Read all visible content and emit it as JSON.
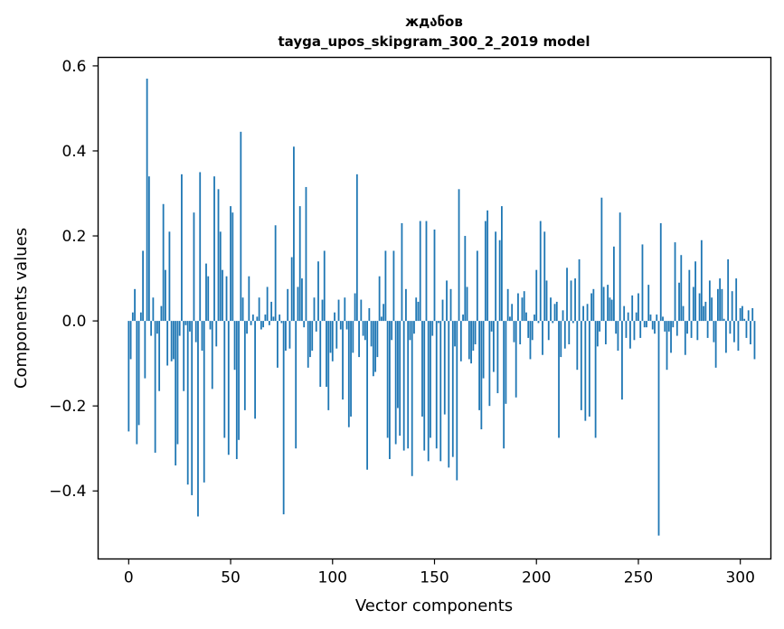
{
  "chart_data": {
    "type": "bar",
    "title": "ждანов",
    "subtitle": "tayga_upos_skipgram_300_2_2019 model",
    "xlabel": "Vector components",
    "ylabel": "Components values",
    "xlim": [
      -15,
      315
    ],
    "ylim": [
      -0.56,
      0.62
    ],
    "x_ticks": [
      0,
      50,
      100,
      150,
      200,
      250,
      300
    ],
    "x_tick_labels": [
      "0",
      "50",
      "100",
      "150",
      "200",
      "250",
      "300"
    ],
    "y_ticks": [
      -0.4,
      -0.2,
      0.0,
      0.2,
      0.4,
      0.6
    ],
    "y_tick_labels": [
      "−0.4",
      "−0.2",
      "0.0",
      "0.2",
      "0.4",
      "0.6"
    ],
    "grid": false,
    "bar_color": "#1f77b4",
    "values": [
      -0.26,
      -0.09,
      0.02,
      0.075,
      -0.29,
      -0.245,
      0.02,
      0.165,
      -0.135,
      0.57,
      0.34,
      -0.035,
      0.055,
      -0.31,
      -0.03,
      -0.165,
      0.035,
      0.275,
      0.12,
      -0.105,
      0.21,
      -0.095,
      -0.09,
      -0.34,
      -0.29,
      -0.035,
      0.345,
      -0.165,
      -0.01,
      -0.385,
      -0.025,
      -0.41,
      0.255,
      -0.05,
      -0.46,
      0.35,
      -0.07,
      -0.38,
      0.135,
      0.105,
      -0.02,
      -0.16,
      0.34,
      -0.06,
      0.31,
      0.21,
      0.12,
      -0.275,
      0.105,
      -0.315,
      0.27,
      0.255,
      -0.115,
      -0.325,
      -0.28,
      0.445,
      0.055,
      -0.21,
      -0.03,
      0.105,
      -0.01,
      0.015,
      -0.23,
      0.01,
      0.055,
      -0.02,
      -0.015,
      0.015,
      0.08,
      -0.01,
      0.045,
      0.01,
      0.225,
      -0.11,
      0.015,
      -0.005,
      -0.455,
      -0.07,
      0.075,
      -0.065,
      0.15,
      0.41,
      -0.3,
      0.08,
      0.27,
      0.1,
      -0.015,
      0.315,
      -0.11,
      -0.085,
      -0.07,
      0.055,
      -0.025,
      0.14,
      -0.155,
      0.05,
      0.165,
      -0.155,
      -0.21,
      -0.075,
      -0.095,
      0.02,
      -0.065,
      0.05,
      -0.02,
      -0.185,
      0.055,
      -0.02,
      -0.25,
      -0.225,
      -0.075,
      0.065,
      0.345,
      -0.085,
      0.05,
      -0.035,
      -0.045,
      -0.35,
      0.03,
      -0.06,
      -0.13,
      -0.12,
      -0.085,
      0.105,
      0.01,
      0.04,
      0.165,
      -0.275,
      -0.325,
      -0.045,
      0.165,
      -0.29,
      -0.205,
      -0.27,
      0.23,
      -0.305,
      0.075,
      -0.3,
      -0.045,
      -0.365,
      -0.03,
      0.055,
      0.045,
      0.235,
      -0.225,
      -0.305,
      0.235,
      -0.33,
      -0.275,
      -0.035,
      0.215,
      -0.3,
      -0.005,
      -0.33,
      0.05,
      -0.22,
      0.095,
      -0.345,
      0.075,
      -0.32,
      -0.06,
      -0.375,
      0.31,
      -0.095,
      0.015,
      0.2,
      0.08,
      -0.09,
      -0.1,
      -0.07,
      -0.055,
      0.165,
      -0.21,
      -0.255,
      -0.135,
      0.235,
      0.26,
      -0.2,
      -0.025,
      -0.12,
      0.21,
      -0.17,
      0.19,
      0.27,
      -0.3,
      -0.195,
      0.075,
      0.01,
      0.04,
      -0.05,
      -0.18,
      0.065,
      -0.055,
      0.055,
      0.07,
      0.02,
      -0.04,
      -0.09,
      -0.045,
      0.015,
      0.12,
      -0.005,
      0.235,
      -0.08,
      0.21,
      0.095,
      -0.045,
      0.055,
      -0.005,
      0.04,
      0.045,
      -0.275,
      -0.085,
      0.025,
      -0.065,
      0.125,
      -0.055,
      0.095,
      -0.005,
      0.1,
      -0.115,
      0.145,
      -0.21,
      0.035,
      -0.235,
      0.04,
      -0.225,
      0.065,
      0.075,
      -0.275,
      -0.06,
      -0.025,
      0.29,
      0.08,
      -0.055,
      0.085,
      0.055,
      0.05,
      0.175,
      -0.03,
      -0.07,
      0.255,
      -0.185,
      0.035,
      -0.04,
      0.02,
      -0.065,
      0.06,
      -0.045,
      0.02,
      0.065,
      -0.04,
      0.18,
      -0.015,
      -0.015,
      0.085,
      0.015,
      -0.02,
      -0.03,
      0.015,
      -0.505,
      0.23,
      0.01,
      -0.025,
      -0.115,
      -0.025,
      -0.075,
      -0.015,
      0.185,
      -0.035,
      0.09,
      0.155,
      0.035,
      -0.08,
      -0.03,
      0.12,
      -0.04,
      0.08,
      0.14,
      -0.045,
      0.065,
      0.19,
      0.035,
      0.045,
      -0.04,
      0.095,
      0.055,
      -0.05,
      -0.11,
      0.075,
      0.1,
      0.075,
      0.005,
      -0.075,
      0.145,
      -0.03,
      0.07,
      -0.05,
      0.1,
      -0.07,
      0.03,
      0.035,
      0.005,
      -0.04,
      0.025,
      -0.055,
      0.03,
      -0.09
    ]
  }
}
